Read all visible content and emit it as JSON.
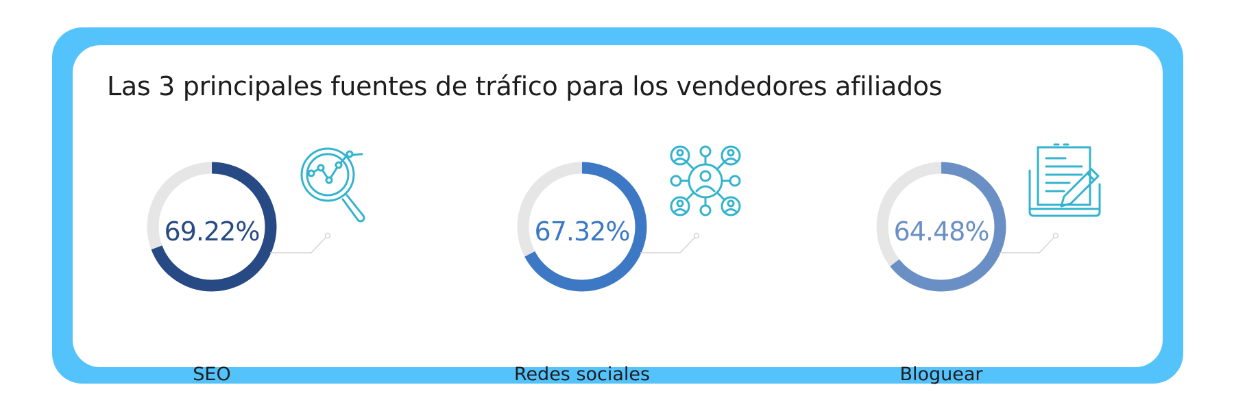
{
  "title": "Las 3 principales fuentes de tráfico para los vendedores afiliados",
  "colors": {
    "frame": "#55c3fb",
    "track": "#e6e6e6",
    "icon": "#33b3cd",
    "connector": "#d4d4d4"
  },
  "chart_data": {
    "type": "donut",
    "title": "Las 3 principales fuentes de tráfico para los vendedores afiliados",
    "unit": "%",
    "categories": [
      "SEO",
      "Redes sociales",
      "Bloguear"
    ],
    "values": [
      69.22,
      67.32,
      64.48
    ],
    "value_labels": [
      "69.22%",
      "67.32%",
      "64.48%"
    ],
    "colors": [
      "#274a84",
      "#3c78c4",
      "#6a8fc4"
    ],
    "icons": [
      "analytics-magnifier-icon",
      "social-network-icon",
      "blog-writing-icon"
    ]
  }
}
